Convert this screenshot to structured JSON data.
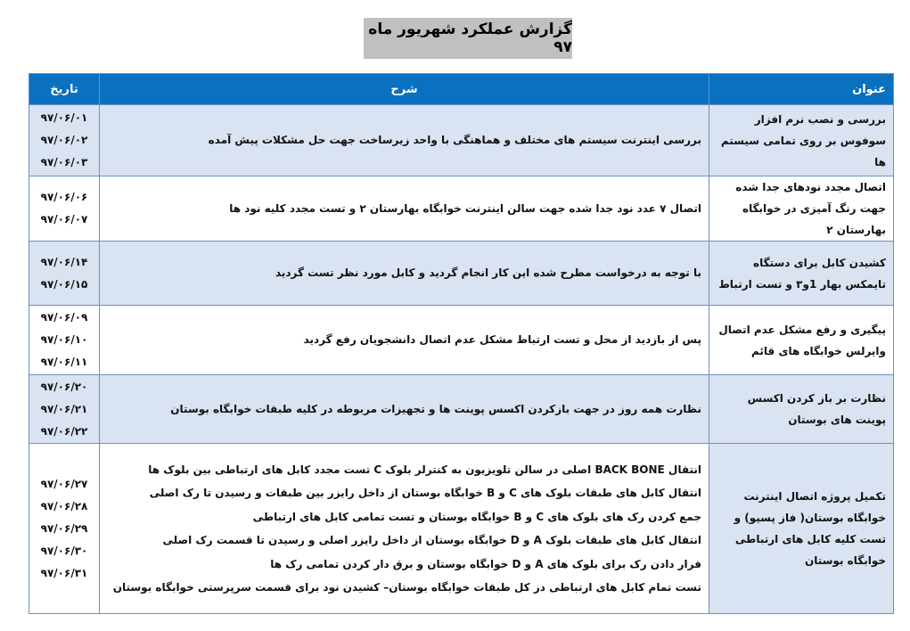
{
  "title": "گزارش عملکرد شهریور ماه ۹۷",
  "headers": {
    "title": "عنوان",
    "description": "شرح",
    "date": "تاریخ"
  },
  "colors": {
    "header_bg": "#0a70c0",
    "row_alt_bg": "#dae3f1",
    "title_box_bg": "#c0c0c0"
  },
  "rows": [
    {
      "title": "بررسی و نصب نرم افزار سوفوس بر روی تمامی سیستم ها",
      "description": [
        "بررسی اینترنت  سیستم های مختلف و هماهنگی با واحد زیرساخت جهت حل مشکلات پیش آمده"
      ],
      "dates": [
        "۹۷/۰۶/۰۱",
        "۹۷/۰۶/۰۲",
        "۹۷/۰۶/۰۳"
      ]
    },
    {
      "title": "اتصال مجدد نودهای جدا شده جهت رنگ آمیزی در خوابگاه بهارستان ۲",
      "description": [
        "اتصال ۷ عدد نود جدا شده جهت سالن اینترنت خوابگاه بهارستان ۲ و تست مجدد کلیه نود ها"
      ],
      "dates": [
        "۹۷/۰۶/۰۶",
        "۹۷/۰۶/۰۷"
      ]
    },
    {
      "title": "کشیدن کابل برای دستگاه تایمکس بهار 1و۳ و تست ارتباط",
      "description": [
        "با توجه به درخواست مطرح شده این کار انجام گردید و کابل مورد نظر تست گردید"
      ],
      "dates": [
        "۹۷/۰۶/۱۴",
        "۹۷/۰۶/۱۵"
      ]
    },
    {
      "title": "پیگیری و رفع مشکل عدم اتصال وایرلس خوابگاه های قائم",
      "description": [
        "پس از بازدید از محل و تست ارتباط مشکل عدم اتصال دانشجویان رفع گردید"
      ],
      "dates": [
        "۹۷/۰۶/۰۹",
        "۹۷/۰۶/۱۰",
        "۹۷/۰۶/۱۱"
      ]
    },
    {
      "title": "نظارت بر باز کردن اکسس پوینت های بوستان",
      "description": [
        "نظارت همه روز در جهت بازکردن اکسس پوینت ها و تجهیزات مربوطه در کلیه طبقات خوابگاه بوستان"
      ],
      "dates": [
        "۹۷/۰۶/۲۰",
        "۹۷/۰۶/۲۱",
        "۹۷/۰۶/۲۲"
      ]
    },
    {
      "title": "تکمیل پروژه اتصال اینترنت خوابگاه بوستان( فاز پسیو) و تست کلیه کابل های ارتباطی خوابگاه بوستان",
      "description": [
        "انتقال BACK BONE اصلی در سالن تلویزیون به کنترلر بلوک C تست مجدد کابل های ارتباطی  بین بلوک ها",
        "انتقال کابل های طبقات بلوک های C و B خوابگاه بوستان از داخل رایزر بین طبقات و رسیدن تا رک اصلی",
        "جمع کردن رک های بلوک های C و B خوابگاه بوستان و تست تمامی کابل های ارتباطی",
        "انتقال کابل های طبقات بلوک A و D خوابگاه بوستان از داخل رایزر اصلی و رسیدن تا قسمت رک اصلی",
        "قرار دادن رک برای بلوک های A و D خوابگاه بوستان و برق دار کردن تمامی رک ها",
        "تست تمام کابل های ارتباطی در کل طبقات خوابگاه بوستان– کشیدن نود برای قسمت سرپرستی خوابگاه بوستان"
      ],
      "dates": [
        "۹۷/۰۶/۲۷",
        "۹۷/۰۶/۲۸",
        "۹۷/۰۶/۲۹",
        "۹۷/۰۶/۳۰",
        "۹۷/۰۶/۳۱"
      ]
    }
  ]
}
